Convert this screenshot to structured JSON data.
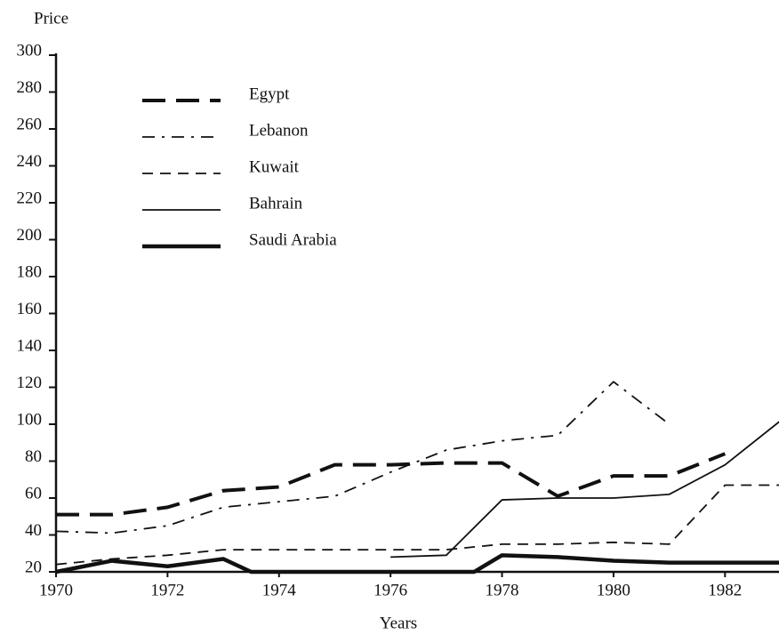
{
  "chart_data": {
    "type": "line",
    "y_label": "Price",
    "x_label": "Years",
    "x": [
      1970,
      1971,
      1972,
      1973,
      1974,
      1975,
      1976,
      1977,
      1978,
      1979,
      1980,
      1981,
      1982,
      1983
    ],
    "series": [
      {
        "name": "Egypt",
        "color": "#111111",
        "linestyle": "long-dash",
        "width": 4,
        "values": [
          51,
          51,
          55,
          64,
          66,
          78,
          78,
          79,
          79,
          61,
          72,
          72,
          84,
          null
        ]
      },
      {
        "name": "Lebanon",
        "color": "#111111",
        "linestyle": "dash-dot",
        "width": 1.8,
        "values": [
          42,
          41,
          45,
          55,
          58,
          61,
          74,
          86,
          91,
          94,
          123,
          100,
          null,
          null
        ]
      },
      {
        "name": "Kuwait",
        "color": "#111111",
        "linestyle": "dash",
        "width": 1.8,
        "values": [
          24,
          27,
          29,
          32,
          32,
          32,
          32,
          32,
          35,
          35,
          36,
          35,
          67,
          67
        ]
      },
      {
        "name": "Bahrain",
        "color": "#111111",
        "linestyle": "solid",
        "width": 1.8,
        "values": [
          null,
          null,
          null,
          null,
          null,
          null,
          28,
          29,
          59,
          60,
          60,
          62,
          78,
          102
        ]
      },
      {
        "name": "Saudi Arabia",
        "color": "#111111",
        "linestyle": "solid",
        "width": 4.5,
        "x": [
          1970,
          1971,
          1972,
          1973,
          1973.5,
          1977.5,
          1978,
          1979,
          1980,
          1981,
          1982,
          1983
        ],
        "values": [
          20,
          26,
          23,
          27,
          20,
          20,
          29,
          28,
          26,
          25,
          25,
          25
        ]
      }
    ],
    "xlim": [
      1970,
      1983
    ],
    "xticks": [
      1970,
      1972,
      1974,
      1976,
      1978,
      1980,
      1982
    ],
    "ylim": [
      20,
      300
    ],
    "yticks": [
      20,
      40,
      60,
      80,
      100,
      120,
      140,
      160,
      180,
      200,
      220,
      240,
      260,
      280,
      300
    ],
    "grid": false,
    "legend": "upper left"
  }
}
